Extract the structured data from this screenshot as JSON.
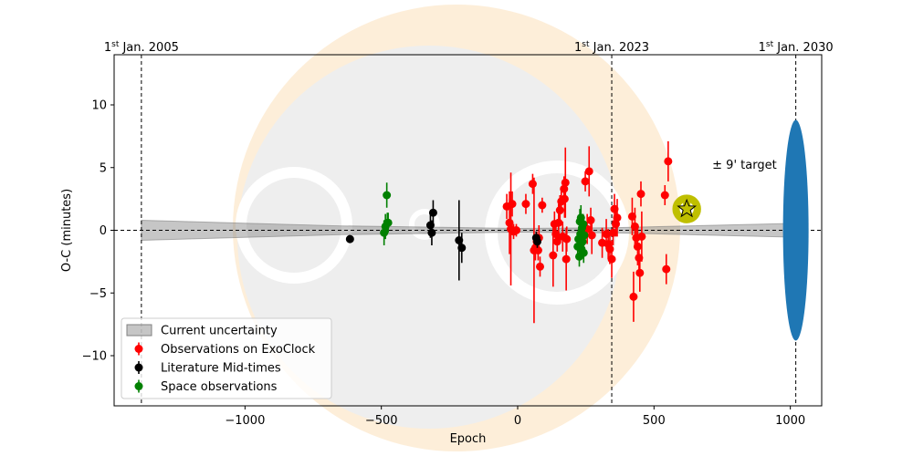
{
  "chart_data": {
    "type": "scatter",
    "title": "",
    "xlabel": "Epoch",
    "ylabel": "O-C (minutes)",
    "xlim": [
      -1480,
      1115
    ],
    "ylim": [
      -14,
      14
    ],
    "x_ticks": [
      -1000,
      -500,
      0,
      500,
      1000
    ],
    "x_tick_labels": [
      "−1000",
      "−500",
      "0",
      "500",
      "1000"
    ],
    "y_ticks": [
      -10,
      -5,
      0,
      5,
      10
    ],
    "y_tick_labels": [
      "−10",
      "−5",
      "0",
      "5",
      "10"
    ],
    "grid": false,
    "date_markers": [
      {
        "epoch": -1380,
        "label_main": "1",
        "label_sup": "st",
        "label_rest": " Jan. 2005"
      },
      {
        "epoch": 345,
        "label_main": "1",
        "label_sup": "st",
        "label_rest": " Jan. 2023"
      },
      {
        "epoch": 1020,
        "label_main": "1",
        "label_sup": "st",
        "label_rest": " Jan. 2030"
      }
    ],
    "uncertainty_band": {
      "x": [
        -1380,
        -650,
        0,
        345,
        1020
      ],
      "half_width": [
        0.8,
        0.35,
        0.15,
        0.2,
        0.55
      ]
    },
    "uncertainty_ellipse": {
      "epoch": 1020,
      "half_height": 8.8
    },
    "target": {
      "epoch": 620,
      "oc": 1.7,
      "err": 0.7,
      "ring_radius_epoch": 140,
      "label": "± 9' target"
    },
    "legend_position": "lower-left",
    "legend": [
      {
        "label": "Current uncertainty",
        "kind": "band"
      },
      {
        "label": "Observations on ExoClock",
        "kind": "errorbar",
        "color": "#ff0000"
      },
      {
        "label": "Literature Mid-times",
        "kind": "errorbar",
        "color": "#000000"
      },
      {
        "label": "Space observations",
        "kind": "errorbar",
        "color": "#008000"
      }
    ],
    "series": [
      {
        "name": "Observations on ExoClock",
        "color": "#ff0000",
        "points": [
          {
            "x": -40,
            "y": 1.9,
            "e": 1.0
          },
          {
            "x": -30,
            "y": 0.6,
            "e": 2.5
          },
          {
            "x": -25,
            "y": 0.1,
            "e": 4.5
          },
          {
            "x": -20,
            "y": 2.1,
            "e": 1.0
          },
          {
            "x": -15,
            "y": -0.1,
            "e": 0.6
          },
          {
            "x": -5,
            "y": 0.0,
            "e": 0.5
          },
          {
            "x": 30,
            "y": 2.1,
            "e": 0.8
          },
          {
            "x": 55,
            "y": 3.7,
            "e": 0.8
          },
          {
            "x": 60,
            "y": -1.6,
            "e": 5.8
          },
          {
            "x": 65,
            "y": -1.4,
            "e": 1.0
          },
          {
            "x": 70,
            "y": -0.9,
            "e": 0.8
          },
          {
            "x": 75,
            "y": -1.6,
            "e": 0.8
          },
          {
            "x": 78,
            "y": -0.6,
            "e": 1.0
          },
          {
            "x": 82,
            "y": -2.9,
            "e": 0.8
          },
          {
            "x": 90,
            "y": 2.0,
            "e": 0.6
          },
          {
            "x": 130,
            "y": -2.0,
            "e": 2.5
          },
          {
            "x": 135,
            "y": 0.5,
            "e": 1.0
          },
          {
            "x": 140,
            "y": -0.3,
            "e": 0.7
          },
          {
            "x": 145,
            "y": -0.9,
            "e": 0.8
          },
          {
            "x": 150,
            "y": 0.6,
            "e": 1.5
          },
          {
            "x": 155,
            "y": 1.6,
            "e": 1.2
          },
          {
            "x": 160,
            "y": 2.3,
            "e": 1.0
          },
          {
            "x": 165,
            "y": -0.5,
            "e": 1.2
          },
          {
            "x": 170,
            "y": 3.3,
            "e": 1.0
          },
          {
            "x": 172,
            "y": 2.5,
            "e": 1.5
          },
          {
            "x": 175,
            "y": 3.8,
            "e": 2.8
          },
          {
            "x": 178,
            "y": -2.3,
            "e": 2.5
          },
          {
            "x": 180,
            "y": -0.7,
            "e": 1.0
          },
          {
            "x": 248,
            "y": 3.9,
            "e": 0.8
          },
          {
            "x": 255,
            "y": 0.1,
            "e": 1.2
          },
          {
            "x": 262,
            "y": 4.7,
            "e": 2.0
          },
          {
            "x": 268,
            "y": 0.8,
            "e": 1.0
          },
          {
            "x": 272,
            "y": -0.4,
            "e": 1.5
          },
          {
            "x": 310,
            "y": -1.0,
            "e": 1.2
          },
          {
            "x": 325,
            "y": -0.3,
            "e": 1.2
          },
          {
            "x": 332,
            "y": -1.1,
            "e": 1.2
          },
          {
            "x": 338,
            "y": -1.5,
            "e": 1.2
          },
          {
            "x": 345,
            "y": -2.3,
            "e": 1.5
          },
          {
            "x": 350,
            "y": -0.2,
            "e": 1.0
          },
          {
            "x": 355,
            "y": 1.7,
            "e": 1.2
          },
          {
            "x": 360,
            "y": 0.5,
            "e": 1.0
          },
          {
            "x": 365,
            "y": 1.0,
            "e": 1.5
          },
          {
            "x": 420,
            "y": 1.1,
            "e": 1.5
          },
          {
            "x": 425,
            "y": -5.3,
            "e": 2.0
          },
          {
            "x": 430,
            "y": 0.3,
            "e": 1.5
          },
          {
            "x": 435,
            "y": -0.6,
            "e": 1.0
          },
          {
            "x": 440,
            "y": -1.3,
            "e": 1.5
          },
          {
            "x": 445,
            "y": -2.2,
            "e": 1.2
          },
          {
            "x": 448,
            "y": -3.4,
            "e": 1.5
          },
          {
            "x": 452,
            "y": 2.9,
            "e": 1.0
          },
          {
            "x": 455,
            "y": -0.5,
            "e": 2.0
          },
          {
            "x": 540,
            "y": 2.8,
            "e": 0.8
          },
          {
            "x": 545,
            "y": -3.1,
            "e": 1.2
          },
          {
            "x": 552,
            "y": 5.5,
            "e": 1.6
          }
        ]
      },
      {
        "name": "Literature Mid-times",
        "color": "#000000",
        "points": [
          {
            "x": -615,
            "y": -0.7,
            "e": 0.3
          },
          {
            "x": -320,
            "y": 0.4,
            "e": 1.0
          },
          {
            "x": -315,
            "y": -0.2,
            "e": 1.0
          },
          {
            "x": -310,
            "y": 1.4,
            "e": 1.0
          },
          {
            "x": -215,
            "y": -0.8,
            "e": 3.2
          },
          {
            "x": -205,
            "y": -1.4,
            "e": 1.2
          },
          {
            "x": 68,
            "y": -0.6,
            "e": 0.5
          },
          {
            "x": 72,
            "y": -0.9,
            "e": 0.5
          }
        ]
      },
      {
        "name": "Space observations",
        "color": "#008000",
        "points": [
          {
            "x": -490,
            "y": -0.2,
            "e": 1.0
          },
          {
            "x": -485,
            "y": 0.3,
            "e": 1.0
          },
          {
            "x": -480,
            "y": 2.8,
            "e": 1.0
          },
          {
            "x": -478,
            "y": 0.6,
            "e": 0.8
          },
          {
            "x": -475,
            "y": 0.6,
            "e": 0.8
          },
          {
            "x": 220,
            "y": -1.3,
            "e": 0.8
          },
          {
            "x": 223,
            "y": -0.7,
            "e": 0.8
          },
          {
            "x": 226,
            "y": -2.1,
            "e": 0.8
          },
          {
            "x": 228,
            "y": 0.7,
            "e": 1.0
          },
          {
            "x": 230,
            "y": -0.3,
            "e": 0.8
          },
          {
            "x": 232,
            "y": 1.0,
            "e": 1.0
          },
          {
            "x": 234,
            "y": -1.5,
            "e": 0.8
          },
          {
            "x": 236,
            "y": 0.2,
            "e": 0.8
          },
          {
            "x": 238,
            "y": -0.9,
            "e": 0.8
          },
          {
            "x": 240,
            "y": 0.5,
            "e": 0.8
          },
          {
            "x": 242,
            "y": -1.8,
            "e": 0.8
          },
          {
            "x": 244,
            "y": -0.4,
            "e": 0.8
          }
        ]
      }
    ]
  }
}
